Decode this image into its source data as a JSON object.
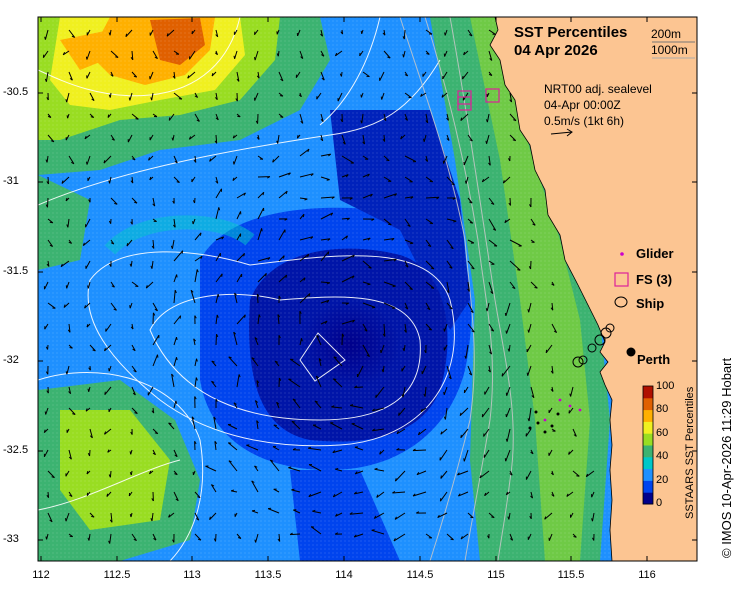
{
  "title": {
    "line1": "SST Percentiles",
    "line2": "04 Apr 2026"
  },
  "isobath_legend": {
    "shallow": "200m",
    "deep": "1000m"
  },
  "currents_info": {
    "line1": "NRT00 adj. sealevel",
    "line2": "04-Apr 00:00Z",
    "line3": "0.5m/s (1kt 6h)"
  },
  "legend": {
    "glider": "Glider",
    "fs": "FS (3)",
    "ship": "Ship"
  },
  "city": {
    "name": "Perth",
    "lon": 115.86,
    "lat": -31.95
  },
  "axes": {
    "lon_ticks": [
      "112",
      "112.5",
      "113",
      "113.5",
      "114",
      "114.5",
      "115",
      "115.5",
      "116"
    ],
    "lat_ticks": [
      "-30.5",
      "-31",
      "-31.5",
      "-32",
      "-32.5",
      "-33"
    ],
    "lon_range": [
      112,
      116.3
    ],
    "lat_range": [
      -30.1,
      -33.1
    ]
  },
  "colorbar": {
    "label": "SSTAARS SST Percentiles",
    "ticks": [
      "100",
      "80",
      "60",
      "40",
      "20",
      "0"
    ],
    "colors": [
      "#00008b",
      "#0044ee",
      "#1e90ff",
      "#00c8c8",
      "#3cb371",
      "#99dd22",
      "#f0f020",
      "#ffb000",
      "#e06000",
      "#b01000"
    ]
  },
  "credit": "© IMOS 10-Apr-2026 11:29 Hobart",
  "colors": {
    "land": "#fcc592",
    "glider": "#cc00cc",
    "fs": "#dd2299"
  }
}
